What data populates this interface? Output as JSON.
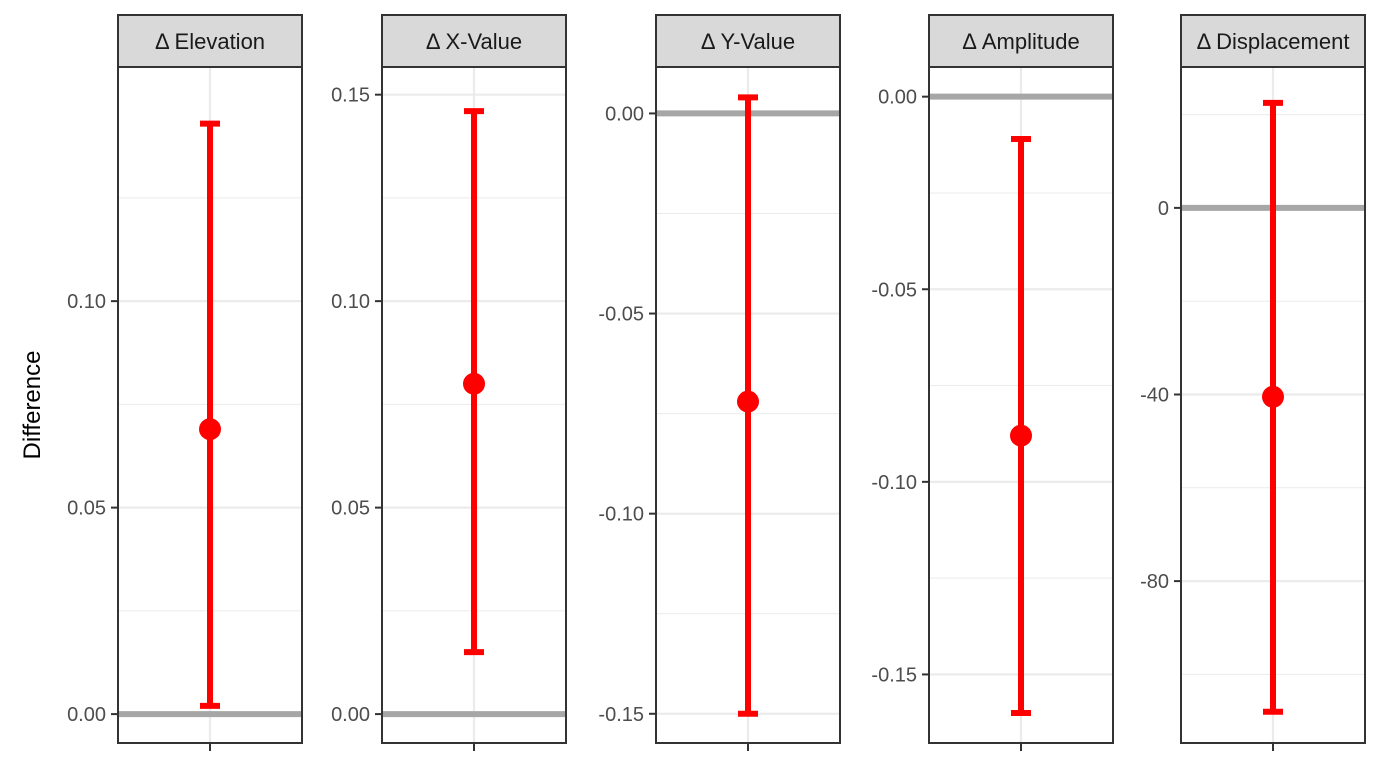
{
  "chart_data": {
    "type": "errorbar",
    "ylabel": "Difference",
    "panels": [
      {
        "title": "Δ Elevation",
        "ylim": [
          -0.007,
          0.1567
        ],
        "yticks": [
          0.0,
          0.05,
          0.1
        ],
        "ytick_labels": [
          "0.00",
          "0.05",
          "0.10"
        ],
        "minor_breaks": [
          0.025,
          0.075,
          0.125
        ],
        "reference": 0,
        "estimate": 0.069,
        "lower": 0.002,
        "upper": 0.143
      },
      {
        "title": "Δ X-Value",
        "ylim": [
          -0.007,
          0.1567
        ],
        "yticks": [
          0.0,
          0.05,
          0.1,
          0.15
        ],
        "ytick_labels": [
          "0.00",
          "0.05",
          "0.10",
          "0.15"
        ],
        "minor_breaks": [
          0.025,
          0.075,
          0.125
        ],
        "reference": 0,
        "estimate": 0.08,
        "lower": 0.015,
        "upper": 0.146
      },
      {
        "title": "Δ Y-Value",
        "ylim": [
          -0.1573,
          0.0116
        ],
        "yticks": [
          0.0,
          -0.05,
          -0.1,
          -0.15
        ],
        "ytick_labels": [
          "0.00",
          "-0.05",
          "-0.10",
          "-0.15"
        ],
        "minor_breaks": [
          -0.025,
          -0.075,
          -0.125
        ],
        "reference": 0,
        "estimate": -0.072,
        "lower": -0.15,
        "upper": 0.004
      },
      {
        "title": "Δ Amplitude",
        "ylim": [
          -0.1678,
          0.0077
        ],
        "yticks": [
          0.0,
          -0.05,
          -0.1,
          -0.15
        ],
        "ytick_labels": [
          "0.00",
          "-0.05",
          "-0.10",
          "-0.15"
        ],
        "minor_breaks": [
          -0.025,
          -0.075,
          -0.125
        ],
        "reference": 0,
        "estimate": -0.088,
        "lower": -0.16,
        "upper": -0.011
      },
      {
        "title": "Δ Displacement",
        "ylim": [
          -114.7,
          30.2
        ],
        "yticks": [
          0,
          -40,
          -80
        ],
        "ytick_labels": [
          "0",
          "-40",
          "-80"
        ],
        "minor_breaks": [
          20,
          -20,
          -60,
          -100
        ],
        "reference": 0,
        "estimate": -40.5,
        "lower": -108,
        "upper": 22.5
      }
    ],
    "colors": {
      "estimate": "#ff0000",
      "reference_line": "#a6a6a6",
      "grid": "#ebebeb",
      "strip_fill": "#d9d9d9",
      "border": "#333333"
    }
  }
}
